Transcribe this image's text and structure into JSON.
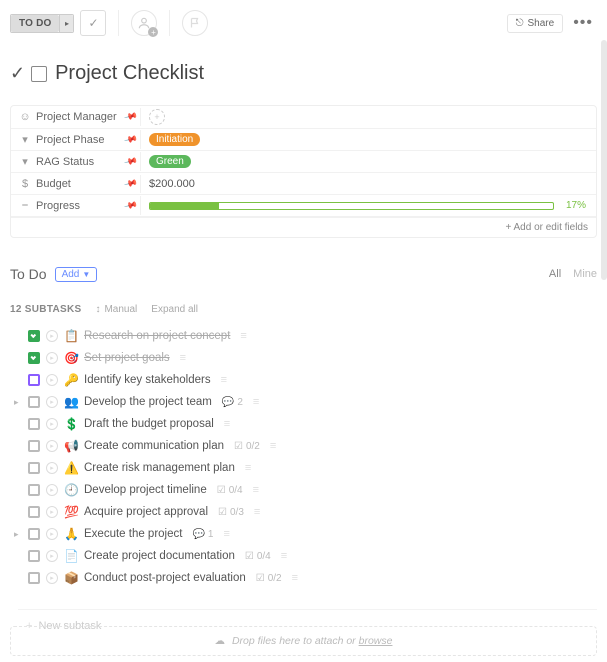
{
  "topbar": {
    "status_label": "TO DO",
    "share_label": "Share"
  },
  "title": {
    "text": "Project Checklist"
  },
  "fields": {
    "project_manager": {
      "label": "Project Manager"
    },
    "project_phase": {
      "label": "Project Phase",
      "value": "Initiation",
      "badge_color": "#f0932b"
    },
    "rag_status": {
      "label": "RAG Status",
      "value": "Green",
      "badge_color": "#5cb85c"
    },
    "budget": {
      "label": "Budget",
      "value": "$200.000"
    },
    "progress": {
      "label": "Progress",
      "percent": 17,
      "percent_label": "17%",
      "bar_color": "#7ac142"
    },
    "add_fields_label": "+  Add or edit fields"
  },
  "section": {
    "title": "To Do",
    "add_label": "Add",
    "filter_all": "All",
    "filter_mine": "Mine"
  },
  "subheader": {
    "count_label": "12 SUBTASKS",
    "sort_label": "Manual",
    "expand_label": "Expand all"
  },
  "tasks": [
    {
      "emoji": "📋",
      "text": "Research on project concept",
      "state": "done-green"
    },
    {
      "emoji": "🎯",
      "text": "Set project goals",
      "state": "done-green"
    },
    {
      "emoji": "🔑",
      "text": "Identify key stakeholders",
      "state": "purple"
    },
    {
      "emoji": "👥",
      "text": "Develop the project team",
      "expandable": true,
      "comments": "2"
    },
    {
      "emoji": "💲",
      "text": "Draft the budget proposal"
    },
    {
      "emoji": "📢",
      "text": "Create communication plan",
      "check": "0/2"
    },
    {
      "emoji": "⚠️",
      "text": "Create risk management plan"
    },
    {
      "emoji": "🕘",
      "text": "Develop project timeline",
      "check": "0/4"
    },
    {
      "emoji": "💯",
      "text": "Acquire project approval",
      "check": "0/3"
    },
    {
      "emoji": "🙏",
      "text": "Execute the project",
      "expandable": true,
      "comments": "1"
    },
    {
      "emoji": "📄",
      "text": "Create project documentation",
      "check": "0/4"
    },
    {
      "emoji": "📦",
      "text": "Conduct post-project evaluation",
      "check": "0/2"
    }
  ],
  "new_subtask_placeholder": "New subtask",
  "dropzone": {
    "prefix": "Drop files here to attach or ",
    "browse": "browse"
  }
}
